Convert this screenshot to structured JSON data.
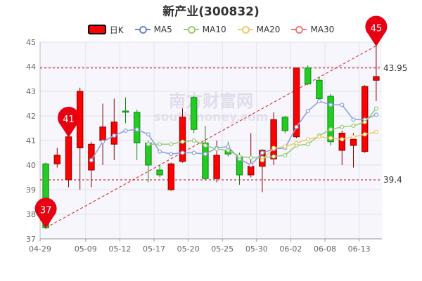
{
  "chart_data": {
    "type": "candlestick",
    "title": "新产业(300832)",
    "legend": [
      {
        "name": "日K",
        "color": "#ff0000"
      },
      {
        "name": "MA5",
        "color": "#6688cc"
      },
      {
        "name": "MA10",
        "color": "#99cc77"
      },
      {
        "name": "MA20",
        "color": "#eecc66"
      },
      {
        "name": "MA30",
        "color": "#ee7777"
      }
    ],
    "ylim": [
      37,
      45
    ],
    "yticks": [
      37,
      38,
      39,
      40,
      41,
      42,
      43,
      44,
      45
    ],
    "xtick_labels": [
      {
        "index": 0,
        "label": "04-29"
      },
      {
        "index": 4,
        "label": "05-09"
      },
      {
        "index": 7,
        "label": "05-12"
      },
      {
        "index": 10,
        "label": "05-17"
      },
      {
        "index": 13,
        "label": "05-20"
      },
      {
        "index": 16,
        "label": "05-25"
      },
      {
        "index": 19,
        "label": "05-30"
      },
      {
        "index": 22,
        "label": "06-02"
      },
      {
        "index": 25,
        "label": "06-08"
      },
      {
        "index": 28,
        "label": "06-13"
      }
    ],
    "candles": [
      {
        "o": 40.05,
        "c": 37.45,
        "h": 40.1,
        "l": 37.4
      },
      {
        "o": 40.05,
        "c": 40.4,
        "h": 40.7,
        "l": 39.9
      },
      {
        "o": 39.4,
        "c": 41.15,
        "h": 41.3,
        "l": 39.1
      },
      {
        "o": 40.7,
        "c": 43.0,
        "h": 43.15,
        "l": 39.0
      },
      {
        "o": 39.8,
        "c": 40.85,
        "h": 40.95,
        "l": 39.1
      },
      {
        "o": 41.0,
        "c": 41.55,
        "h": 42.5,
        "l": 40.0
      },
      {
        "o": 40.85,
        "c": 41.75,
        "h": 42.7,
        "l": 40.2
      },
      {
        "o": 42.2,
        "c": 42.15,
        "h": 42.75,
        "l": 41.7
      },
      {
        "o": 42.15,
        "c": 40.9,
        "h": 42.25,
        "l": 40.2
      },
      {
        "o": 40.9,
        "c": 40.0,
        "h": 41.0,
        "l": 39.3
      },
      {
        "o": 39.8,
        "c": 39.6,
        "h": 40.0,
        "l": 39.5
      },
      {
        "o": 39.0,
        "c": 40.05,
        "h": 40.1,
        "l": 38.95
      },
      {
        "o": 40.15,
        "c": 41.95,
        "h": 42.3,
        "l": 40.1
      },
      {
        "o": 42.75,
        "c": 41.45,
        "h": 42.8,
        "l": 41.3
      },
      {
        "o": 40.9,
        "c": 39.45,
        "h": 41.6,
        "l": 39.4
      },
      {
        "o": 39.45,
        "c": 40.4,
        "h": 41.0,
        "l": 39.3
      },
      {
        "o": 40.6,
        "c": 40.45,
        "h": 40.95,
        "l": 40.35
      },
      {
        "o": 40.35,
        "c": 39.6,
        "h": 40.5,
        "l": 39.2
      },
      {
        "o": 39.6,
        "c": 39.95,
        "h": 41.3,
        "l": 39.5
      },
      {
        "o": 39.95,
        "c": 40.6,
        "h": 40.65,
        "l": 38.9
      },
      {
        "o": 40.25,
        "c": 41.85,
        "h": 42.15,
        "l": 40.0
      },
      {
        "o": 41.95,
        "c": 41.4,
        "h": 42.0,
        "l": 41.3
      },
      {
        "o": 41.15,
        "c": 43.95,
        "h": 43.95,
        "l": 41.1
      },
      {
        "o": 43.95,
        "c": 43.3,
        "h": 44.05,
        "l": 43.25
      },
      {
        "o": 43.45,
        "c": 42.7,
        "h": 43.6,
        "l": 42.6
      },
      {
        "o": 42.8,
        "c": 40.95,
        "h": 42.9,
        "l": 40.8
      },
      {
        "o": 40.6,
        "c": 41.3,
        "h": 41.4,
        "l": 40.0
      },
      {
        "o": 40.8,
        "c": 41.05,
        "h": 41.3,
        "l": 39.9
      },
      {
        "o": 40.55,
        "c": 43.2,
        "h": 43.25,
        "l": 40.5
      },
      {
        "o": 43.45,
        "c": 43.6,
        "h": 44.85,
        "l": 42.6
      }
    ],
    "series": [
      {
        "name": "MA5",
        "color": "#8fa3d9",
        "values": [
          null,
          null,
          null,
          null,
          40.2,
          40.95,
          41.2,
          41.4,
          41.45,
          41.25,
          40.55,
          40.45,
          40.5,
          40.5,
          40.45,
          40.7,
          40.75,
          40.25,
          40.0,
          40.5,
          40.65,
          40.7,
          41.55,
          42.2,
          42.6,
          42.45,
          42.45,
          41.85,
          41.85,
          42.05
        ]
      },
      {
        "name": "MA10",
        "color": "#99cc77",
        "values": [
          null,
          null,
          null,
          null,
          null,
          null,
          null,
          null,
          null,
          40.85,
          40.85,
          40.85,
          40.95,
          41.0,
          40.8,
          40.65,
          40.6,
          40.35,
          40.3,
          40.3,
          40.35,
          40.4,
          40.8,
          40.85,
          41.2,
          41.45,
          41.55,
          41.6,
          41.75,
          42.3
        ]
      },
      {
        "name": "MA20",
        "color": "#eecc66",
        "values": [
          null,
          null,
          null,
          null,
          null,
          null,
          null,
          null,
          null,
          null,
          null,
          null,
          null,
          null,
          null,
          null,
          null,
          null,
          null,
          40.2,
          40.7,
          40.75,
          40.9,
          41.05,
          41.15,
          41.1,
          41.05,
          41.15,
          41.25,
          41.35
        ]
      }
    ],
    "reference_lines": [
      {
        "label": "43.95",
        "value": 43.95
      },
      {
        "label": "39.4",
        "value": 39.4
      }
    ],
    "markers": [
      {
        "label": "37",
        "index": 0,
        "value": 37.45
      },
      {
        "label": "41",
        "index": 2,
        "value": 41.15
      },
      {
        "label": "45",
        "index": 29,
        "value": 44.85
      }
    ],
    "trend_line": {
      "from": {
        "index": 0,
        "value": 37.45
      },
      "to": {
        "index": 29,
        "value": 44.85
      }
    }
  },
  "watermark": {
    "cn": "南方财富网",
    "en": "southmoney.com"
  }
}
